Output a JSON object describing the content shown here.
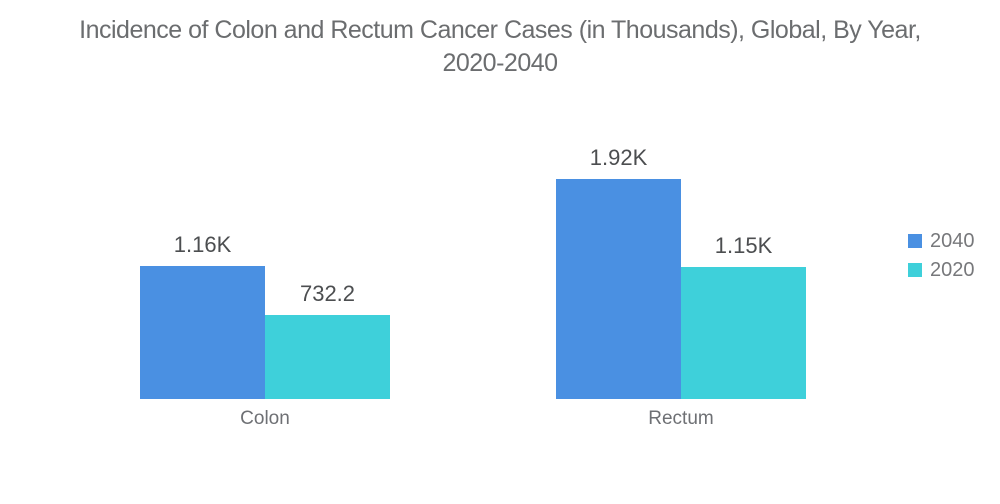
{
  "header": {
    "title_line1": "Incidence of Colon and Rectum Cancer Cases (in Thousands), Global, By Year,",
    "title_line2": "2020-2040"
  },
  "chart_data": {
    "type": "bar",
    "title": "Incidence of Colon and Rectum Cancer Cases (in Thousands), Global, By Year, 2020-2040",
    "unit": "Thousands",
    "categories": [
      "Colon",
      "Rectum"
    ],
    "series": [
      {
        "name": "2040",
        "color": "#4a90e2",
        "values": [
          1160,
          1920
        ],
        "value_labels": [
          "1.16K",
          "1.92K"
        ]
      },
      {
        "name": "2020",
        "color": "#3ed0da",
        "values": [
          732.2,
          1150
        ],
        "value_labels": [
          "732.2",
          "1.15K"
        ]
      }
    ],
    "ylim": [
      0,
      1920
    ],
    "grid": false,
    "axes_hidden": true,
    "value_labels_shown": true,
    "legend_position": "right"
  }
}
